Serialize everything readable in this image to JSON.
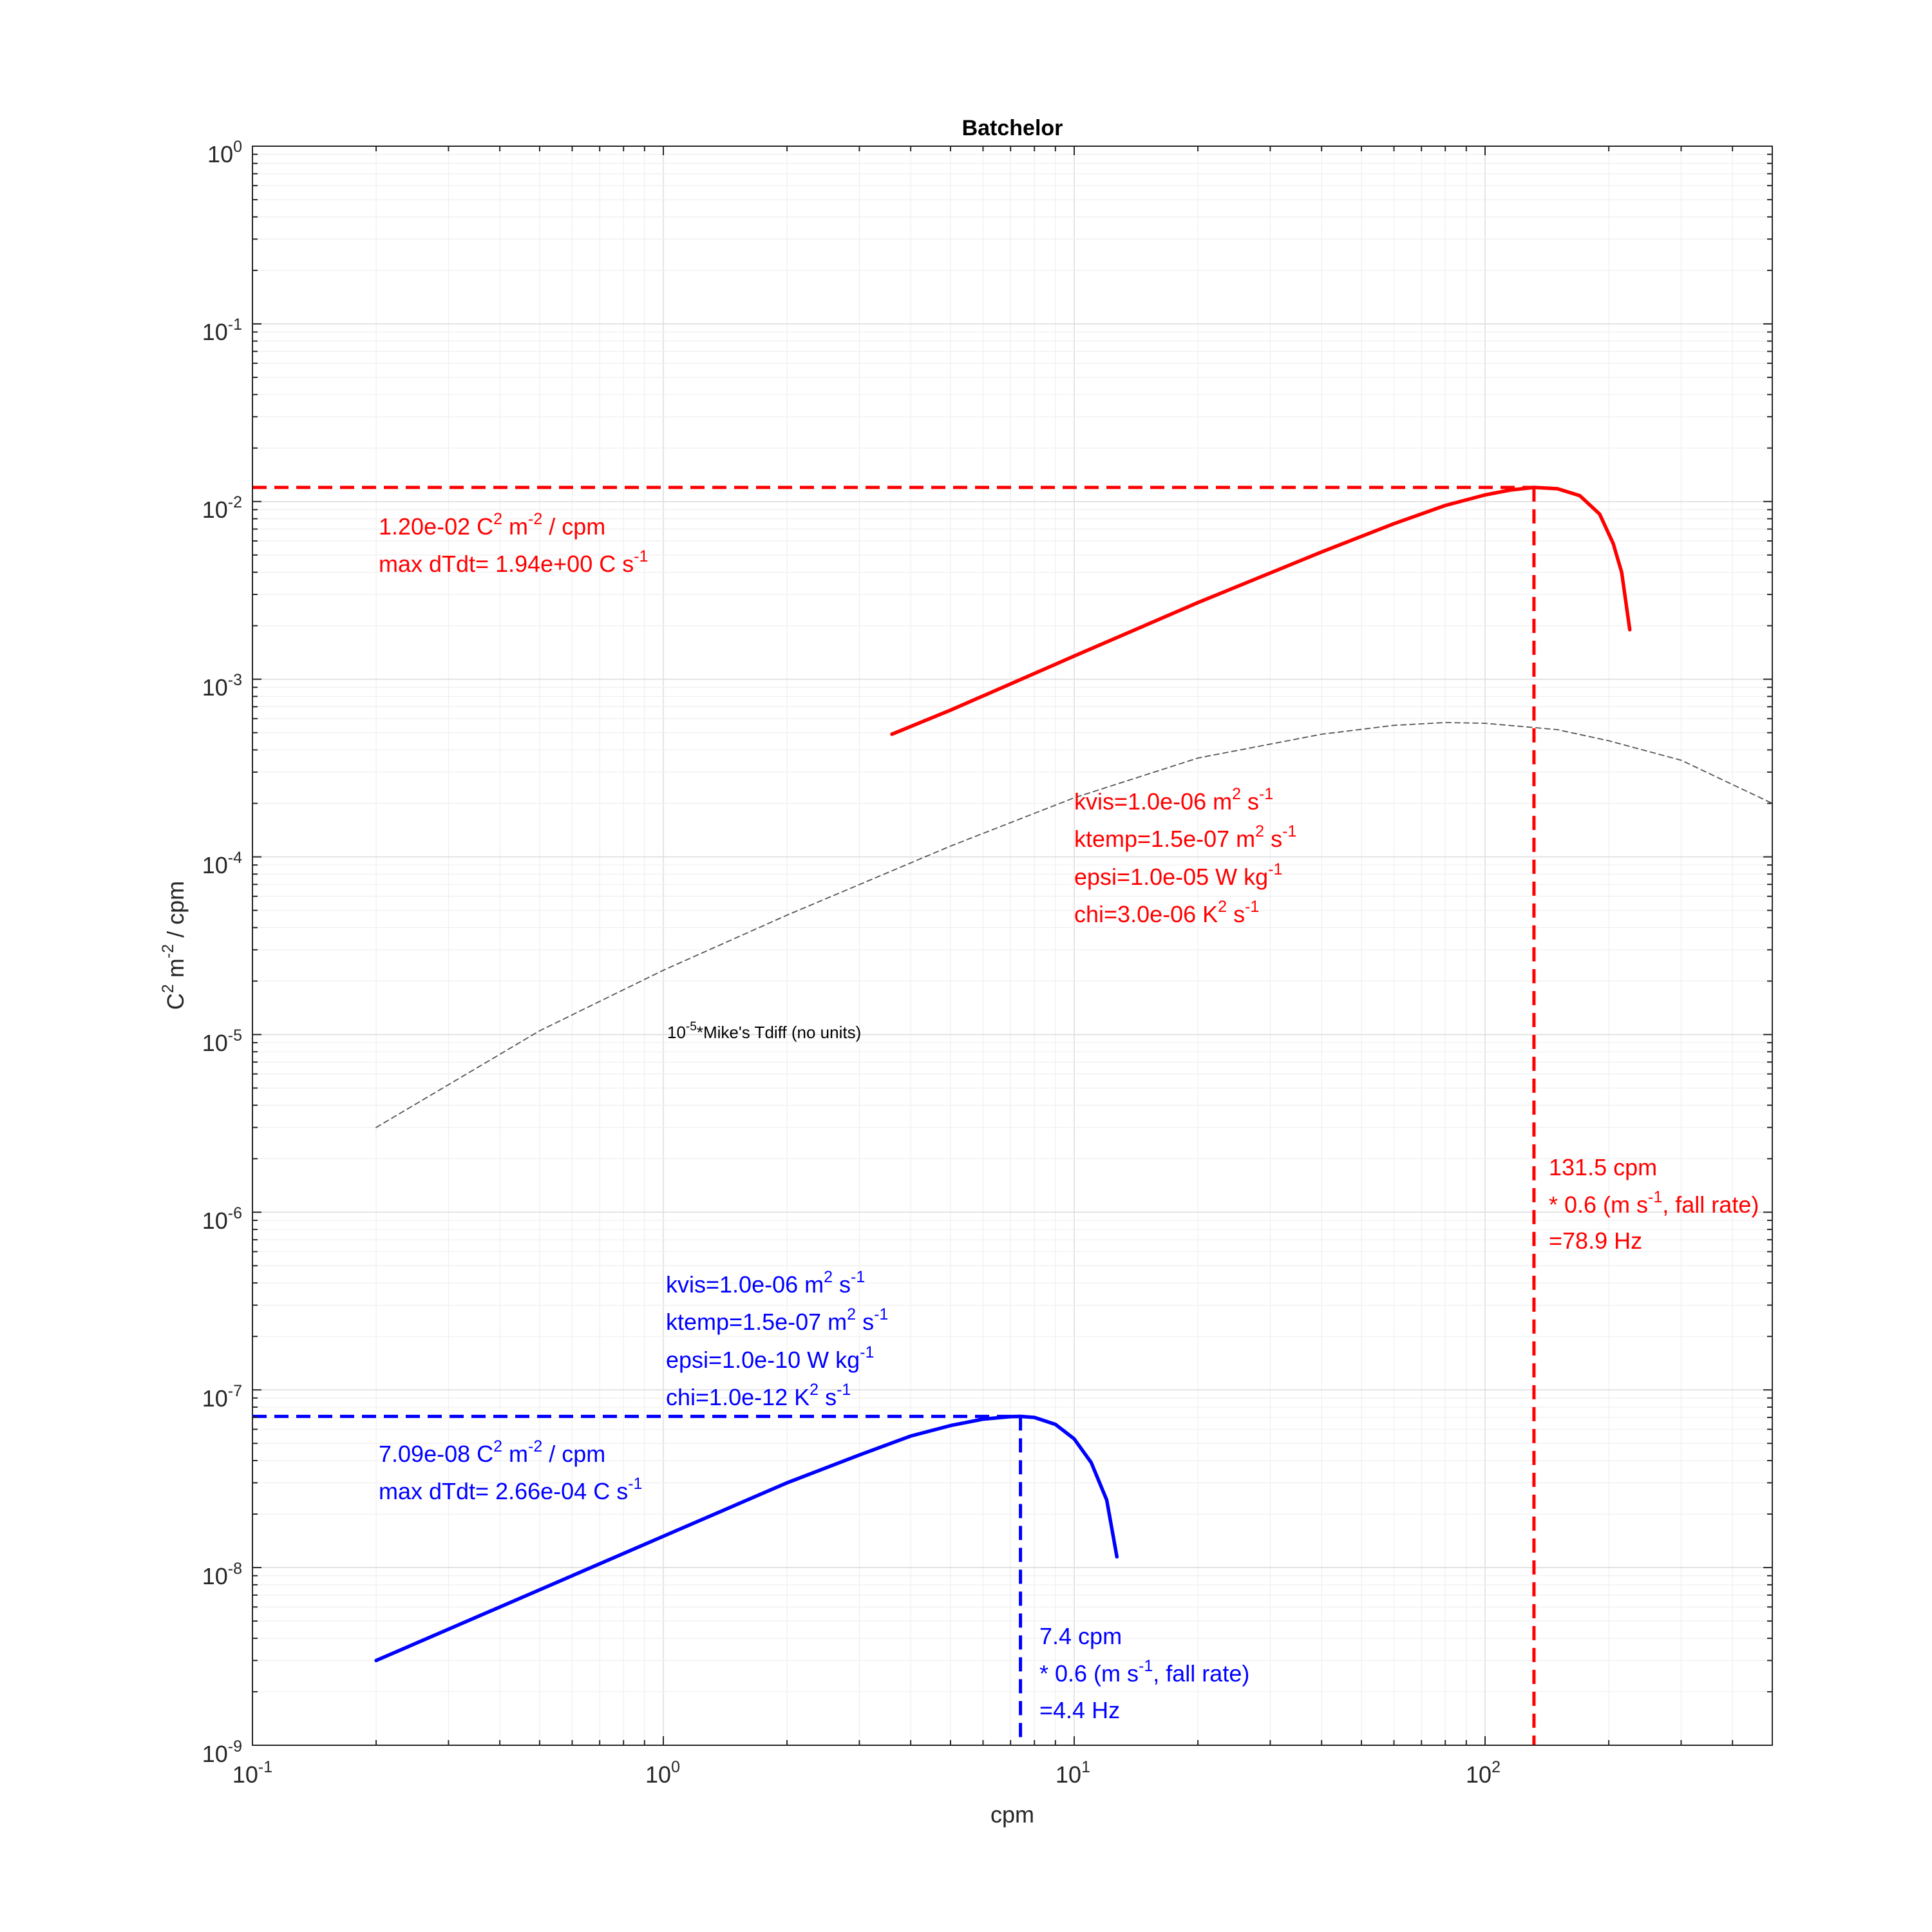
{
  "chart_data": {
    "type": "line",
    "title": "Batchelor",
    "xlabel": "cpm",
    "ylabel": {
      "base": "C",
      "sup1": "2",
      "mid": " m",
      "sup2": "-2",
      "tail": " / cpm"
    },
    "x_scale": "log",
    "y_scale": "log",
    "xlim": [
      0.1,
      500
    ],
    "ylim": [
      1e-09,
      1
    ],
    "grid": true,
    "x_ticks": [
      {
        "value": 0.1,
        "base": "10",
        "exp": "-1"
      },
      {
        "value": 1,
        "base": "10",
        "exp": "0"
      },
      {
        "value": 10,
        "base": "10",
        "exp": "1"
      },
      {
        "value": 100,
        "base": "10",
        "exp": "2"
      }
    ],
    "y_ticks": [
      {
        "value": 1,
        "base": "10",
        "exp": "0"
      },
      {
        "value": 0.1,
        "base": "10",
        "exp": "-1"
      },
      {
        "value": 0.01,
        "base": "10",
        "exp": "-2"
      },
      {
        "value": 0.001,
        "base": "10",
        "exp": "-3"
      },
      {
        "value": 0.0001,
        "base": "10",
        "exp": "-4"
      },
      {
        "value": 1e-05,
        "base": "10",
        "exp": "-5"
      },
      {
        "value": 1e-06,
        "base": "10",
        "exp": "-6"
      },
      {
        "value": 1e-07,
        "base": "10",
        "exp": "-7"
      },
      {
        "value": 1e-08,
        "base": "10",
        "exp": "-8"
      },
      {
        "value": 1e-09,
        "base": "10",
        "exp": "-9"
      }
    ],
    "series": [
      {
        "color": "#ff0000",
        "style": "solid",
        "x": [
          3.6,
          5,
          10,
          20,
          40,
          60,
          80,
          100,
          115,
          131.5,
          150,
          170,
          190,
          205,
          215,
          225
        ],
        "y": [
          0.00049,
          0.00067,
          0.00135,
          0.0027,
          0.0052,
          0.0075,
          0.0095,
          0.0109,
          0.0116,
          0.012,
          0.0118,
          0.0108,
          0.0085,
          0.0058,
          0.004,
          0.0019
        ]
      },
      {
        "color": "#0000ff",
        "style": "solid",
        "x": [
          0.2,
          0.5,
          1,
          2,
          3,
          4,
          5,
          6,
          7,
          7.4,
          8,
          9,
          10,
          11,
          12,
          12.7
        ],
        "y": [
          3e-09,
          7.5e-09,
          1.5e-08,
          3e-08,
          4.3e-08,
          5.5e-08,
          6.3e-08,
          6.85e-08,
          7.07e-08,
          7.09e-08,
          7e-08,
          6.4e-08,
          5.3e-08,
          3.9e-08,
          2.4e-08,
          1.15e-08
        ]
      },
      {
        "color": "#555555",
        "style": "thin-dashed",
        "x": [
          0.2,
          0.5,
          1,
          2,
          5,
          10,
          20,
          40,
          60,
          80,
          100,
          150,
          200,
          300,
          500
        ],
        "y": [
          3e-06,
          1.05e-05,
          2.3e-05,
          4.7e-05,
          0.000115,
          0.000215,
          0.00036,
          0.00049,
          0.00055,
          0.00057,
          0.000565,
          0.00052,
          0.00045,
          0.00035,
          0.0002
        ]
      }
    ],
    "reference_lines": [
      {
        "color": "#ff0000",
        "peak_x": 131.5,
        "peak_y": 0.012
      },
      {
        "color": "#0000ff",
        "peak_x": 7.4,
        "peak_y": 7.09e-08
      }
    ],
    "annotations": {
      "red_peak": {
        "line1": {
          "a": "1.20e-02 C",
          "s1": "2",
          "b": " m",
          "s2": "-2",
          "c": " / cpm"
        },
        "line2": {
          "a": "max dTdt= 1.94e+00 C s",
          "s1": "-1"
        }
      },
      "red_params": {
        "kvis": {
          "a": "kvis=1.0e-06 m",
          "s1": "2",
          "b": " s",
          "s2": "-1"
        },
        "ktemp": {
          "a": "ktemp=1.5e-07 m",
          "s1": "2",
          "b": " s",
          "s2": "-1"
        },
        "epsi": {
          "a": "epsi=1.0e-05 W kg",
          "s1": "-1"
        },
        "chi": {
          "a": "chi=3.0e-06 K",
          "s1": "2",
          "b": " s",
          "s2": "-1"
        }
      },
      "red_freq": {
        "line1": "131.5 cpm",
        "line2": {
          "a": "* 0.6 (m s",
          "s1": "-1",
          "b": ", fall rate)"
        },
        "line3": "=78.9 Hz"
      },
      "blue_params": {
        "kvis": {
          "a": "kvis=1.0e-06 m",
          "s1": "2",
          "b": " s",
          "s2": "-1"
        },
        "ktemp": {
          "a": "ktemp=1.5e-07 m",
          "s1": "2",
          "b": " s",
          "s2": "-1"
        },
        "epsi": {
          "a": "epsi=1.0e-10 W kg",
          "s1": "-1"
        },
        "chi": {
          "a": "chi=1.0e-12 K",
          "s1": "2",
          "b": " s",
          "s2": "-1"
        }
      },
      "blue_peak": {
        "line1": {
          "a": "7.09e-08 C",
          "s1": "2",
          "b": " m",
          "s2": "-2",
          "c": " / cpm"
        },
        "line2": {
          "a": "max dTdt= 2.66e-04 C s",
          "s1": "-1"
        }
      },
      "blue_freq": {
        "line1": "7.4 cpm",
        "line2": {
          "a": "* 0.6 (m s",
          "s1": "-1",
          "b": ", fall rate)"
        },
        "line3": "=4.4 Hz"
      },
      "tdiff_label": {
        "a": "10",
        "s1": "-5",
        "b": "*Mike's Tdiff (no units)"
      }
    }
  }
}
